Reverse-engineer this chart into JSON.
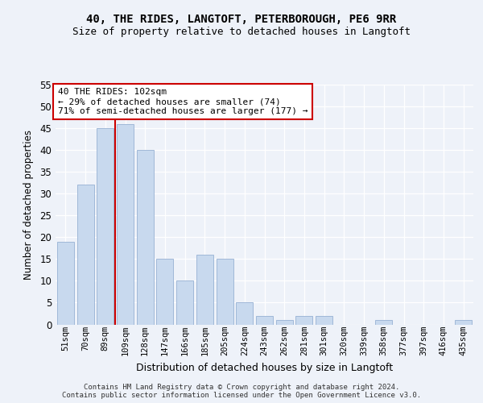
{
  "title1": "40, THE RIDES, LANGTOFT, PETERBOROUGH, PE6 9RR",
  "title2": "Size of property relative to detached houses in Langtoft",
  "xlabel": "Distribution of detached houses by size in Langtoft",
  "ylabel": "Number of detached properties",
  "categories": [
    "51sqm",
    "70sqm",
    "89sqm",
    "109sqm",
    "128sqm",
    "147sqm",
    "166sqm",
    "185sqm",
    "205sqm",
    "224sqm",
    "243sqm",
    "262sqm",
    "281sqm",
    "301sqm",
    "320sqm",
    "339sqm",
    "358sqm",
    "377sqm",
    "397sqm",
    "416sqm",
    "435sqm"
  ],
  "values": [
    19,
    32,
    45,
    46,
    40,
    15,
    10,
    16,
    15,
    5,
    2,
    1,
    2,
    2,
    0,
    0,
    1,
    0,
    0,
    0,
    1
  ],
  "bar_color": "#c8d9ee",
  "bar_edge_color": "#a0b8d8",
  "marker_line_color": "#cc0000",
  "annotation_text": "40 THE RIDES: 102sqm\n← 29% of detached houses are smaller (74)\n71% of semi-detached houses are larger (177) →",
  "annotation_box_color": "#ffffff",
  "annotation_box_edge_color": "#cc0000",
  "ylim": [
    0,
    55
  ],
  "yticks": [
    0,
    5,
    10,
    15,
    20,
    25,
    30,
    35,
    40,
    45,
    50,
    55
  ],
  "footer": "Contains HM Land Registry data © Crown copyright and database right 2024.\nContains public sector information licensed under the Open Government Licence v3.0.",
  "bg_color": "#eef2f9",
  "grid_color": "#ffffff"
}
